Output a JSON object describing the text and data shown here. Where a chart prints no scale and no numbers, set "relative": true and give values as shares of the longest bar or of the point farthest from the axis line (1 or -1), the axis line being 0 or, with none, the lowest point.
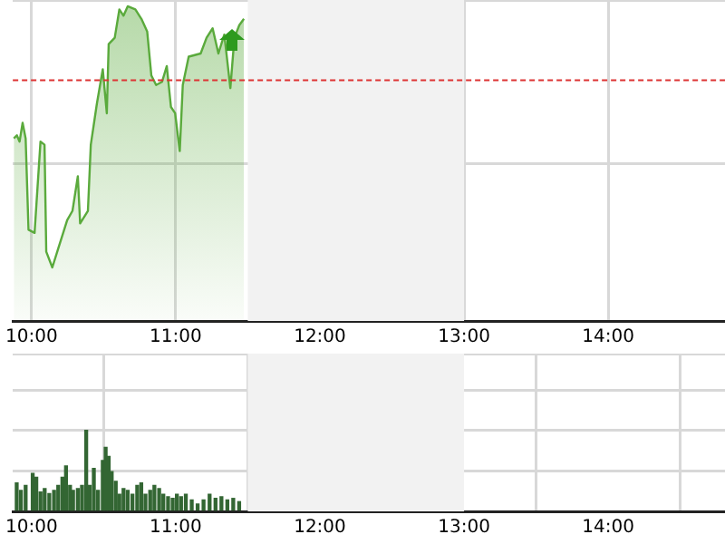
{
  "chart_data": [
    {
      "type": "area",
      "relative": true,
      "x": [
        9.877,
        9.898,
        9.917,
        9.938,
        9.959,
        9.979,
        10.021,
        10.062,
        10.09,
        10.102,
        10.144,
        10.185,
        10.247,
        10.284,
        10.321,
        10.337,
        10.391,
        10.411,
        10.453,
        10.494,
        10.522,
        10.535,
        10.577,
        10.609,
        10.638,
        10.667,
        10.72,
        10.762,
        10.802,
        10.831,
        10.864,
        10.905,
        10.938,
        10.967,
        10.996,
        11.028,
        11.049,
        11.09,
        11.173,
        11.214,
        11.256,
        11.296,
        11.337,
        11.379,
        11.407,
        11.441,
        11.473
      ],
      "series": [
        {
          "color": "#5aaa3c",
          "values": [
            0.58,
            0.59,
            0.57,
            0.63,
            0.58,
            0.29,
            0.28,
            0.57,
            0.56,
            0.22,
            0.17,
            0.23,
            0.32,
            0.35,
            0.46,
            0.31,
            0.35,
            0.56,
            0.69,
            0.8,
            0.66,
            0.88,
            0.9,
            0.99,
            0.97,
            1.0,
            0.99,
            0.96,
            0.92,
            0.78,
            0.75,
            0.76,
            0.81,
            0.68,
            0.66,
            0.54,
            0.75,
            0.84,
            0.85,
            0.9,
            0.93,
            0.85,
            0.91,
            0.74,
            0.9,
            0.94,
            0.96
          ]
        }
      ],
      "xlim": [
        9.87,
        14.81
      ],
      "xticks": [
        {
          "value": 10,
          "label": "10:00"
        },
        {
          "value": 11,
          "label": "11:00"
        },
        {
          "value": 12,
          "label": "12:00"
        },
        {
          "value": 13,
          "label": "13:00"
        },
        {
          "value": 14,
          "label": "14:00"
        }
      ],
      "ref_lines": [
        {
          "axis": "y",
          "value": 0.765,
          "color": "#dd3333",
          "line_style": "dashed"
        }
      ],
      "bands": [
        {
          "axis": "x",
          "from": 11.5,
          "to": 13,
          "color": "#f2f2f2"
        }
      ],
      "grid": true,
      "tick_labels": "x",
      "legend": false
    },
    {
      "type": "bar",
      "relative": true,
      "x": [
        9.897,
        9.926,
        9.959,
        10.008,
        10.033,
        10.062,
        10.091,
        10.123,
        10.156,
        10.185,
        10.214,
        10.239,
        10.267,
        10.288,
        10.321,
        10.35,
        10.379,
        10.403,
        10.432,
        10.461,
        10.494,
        10.514,
        10.535,
        10.556,
        10.584,
        10.609,
        10.638,
        10.667,
        10.7,
        10.733,
        10.761,
        10.79,
        10.823,
        10.852,
        10.885,
        10.914,
        10.947,
        10.979,
        11.008,
        11.037,
        11.07,
        11.111,
        11.152,
        11.193,
        11.235,
        11.276,
        11.317,
        11.358,
        11.399,
        11.44
      ],
      "series": [
        {
          "color": "#336633",
          "values": [
            0.35,
            0.26,
            0.32,
            0.47,
            0.42,
            0.24,
            0.28,
            0.22,
            0.26,
            0.32,
            0.42,
            0.56,
            0.32,
            0.26,
            0.28,
            0.32,
            1.0,
            0.32,
            0.53,
            0.26,
            0.63,
            0.79,
            0.68,
            0.49,
            0.37,
            0.21,
            0.28,
            0.26,
            0.21,
            0.32,
            0.35,
            0.21,
            0.26,
            0.32,
            0.28,
            0.21,
            0.18,
            0.16,
            0.21,
            0.18,
            0.21,
            0.14,
            0.09,
            0.14,
            0.21,
            0.16,
            0.18,
            0.14,
            0.16,
            0.12
          ]
        }
      ],
      "xlim": [
        9.87,
        14.81
      ],
      "xticks": [
        {
          "value": 10,
          "label": "10:00"
        },
        {
          "value": 11,
          "label": "11:00"
        },
        {
          "value": 12,
          "label": "12:00"
        },
        {
          "value": 13,
          "label": "13:00"
        },
        {
          "value": 14,
          "label": "14:00"
        }
      ],
      "bands": [
        {
          "axis": "x",
          "from": 11.5,
          "to": 13,
          "color": "#f2f2f2"
        }
      ],
      "grid": true,
      "tick_labels": "x",
      "legend": false
    }
  ]
}
